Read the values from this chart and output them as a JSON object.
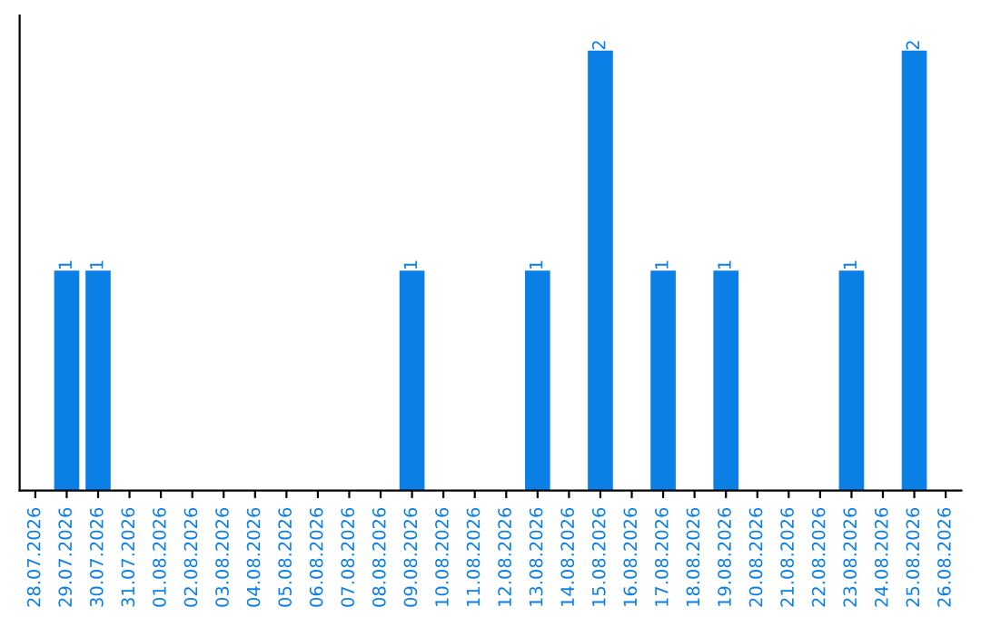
{
  "chart_data": {
    "type": "bar",
    "categories": [
      "28.07.2026",
      "29.07.2026",
      "30.07.2026",
      "31.07.2026",
      "01.08.2026",
      "02.08.2026",
      "03.08.2026",
      "04.08.2026",
      "05.08.2026",
      "06.08.2026",
      "07.08.2026",
      "08.08.2026",
      "09.08.2026",
      "10.08.2026",
      "11.08.2026",
      "12.08.2026",
      "13.08.2026",
      "14.08.2026",
      "15.08.2026",
      "16.08.2026",
      "17.08.2026",
      "18.08.2026",
      "19.08.2026",
      "20.08.2026",
      "21.08.2026",
      "22.08.2026",
      "23.08.2026",
      "24.08.2026",
      "25.08.2026",
      "26.08.2026"
    ],
    "values": [
      0,
      1,
      1,
      0,
      0,
      0,
      0,
      0,
      0,
      0,
      0,
      0,
      1,
      0,
      0,
      0,
      1,
      0,
      2,
      0,
      1,
      0,
      1,
      0,
      0,
      0,
      1,
      0,
      2,
      0
    ],
    "value_labels": [
      null,
      "1",
      "1",
      null,
      null,
      null,
      null,
      null,
      null,
      null,
      null,
      null,
      "1",
      null,
      null,
      null,
      "1",
      null,
      "2",
      null,
      "1",
      null,
      "1",
      null,
      null,
      null,
      "1",
      null,
      "2",
      null
    ],
    "color": "#0a7fe6",
    "grid": false,
    "legend": false,
    "tick_labels": "x"
  }
}
